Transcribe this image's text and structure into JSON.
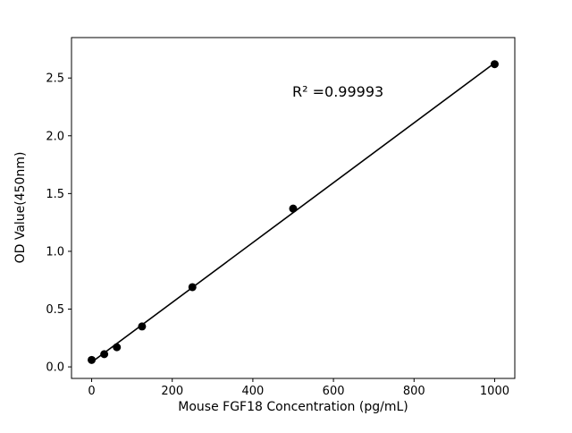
{
  "figure": {
    "background": "#ffffff",
    "foreground": "#000000"
  },
  "chart_data": {
    "type": "scatter",
    "title": "",
    "xlabel": "Mouse FGF18 Concentration (pg/mL)",
    "ylabel": "OD Value(450nm)",
    "annotation": "R² =0.99993",
    "series": [
      {
        "name": "standard-points",
        "x": [
          0,
          31.25,
          62.5,
          125,
          250,
          500,
          1000
        ],
        "y": [
          0.06,
          0.11,
          0.17,
          0.35,
          0.69,
          1.37,
          2.62
        ],
        "marker": "circle",
        "marker_color": "#000000"
      }
    ],
    "fit_line": {
      "x": [
        0,
        1000
      ],
      "y": [
        0.04,
        2.63
      ],
      "color": "#000000"
    },
    "xlim": [
      -50,
      1050
    ],
    "ylim": [
      -0.1,
      2.85
    ],
    "xticks": [
      0,
      200,
      400,
      600,
      800,
      1000
    ],
    "xtick_labels": [
      "0",
      "200",
      "400",
      "600",
      "800",
      "1000"
    ],
    "yticks": [
      0.0,
      0.5,
      1.0,
      1.5,
      2.0,
      2.5
    ],
    "ytick_labels": [
      "0.0",
      "0.5",
      "1.0",
      "1.5",
      "2.0",
      "2.5"
    ],
    "grid": false,
    "legend": "none"
  }
}
